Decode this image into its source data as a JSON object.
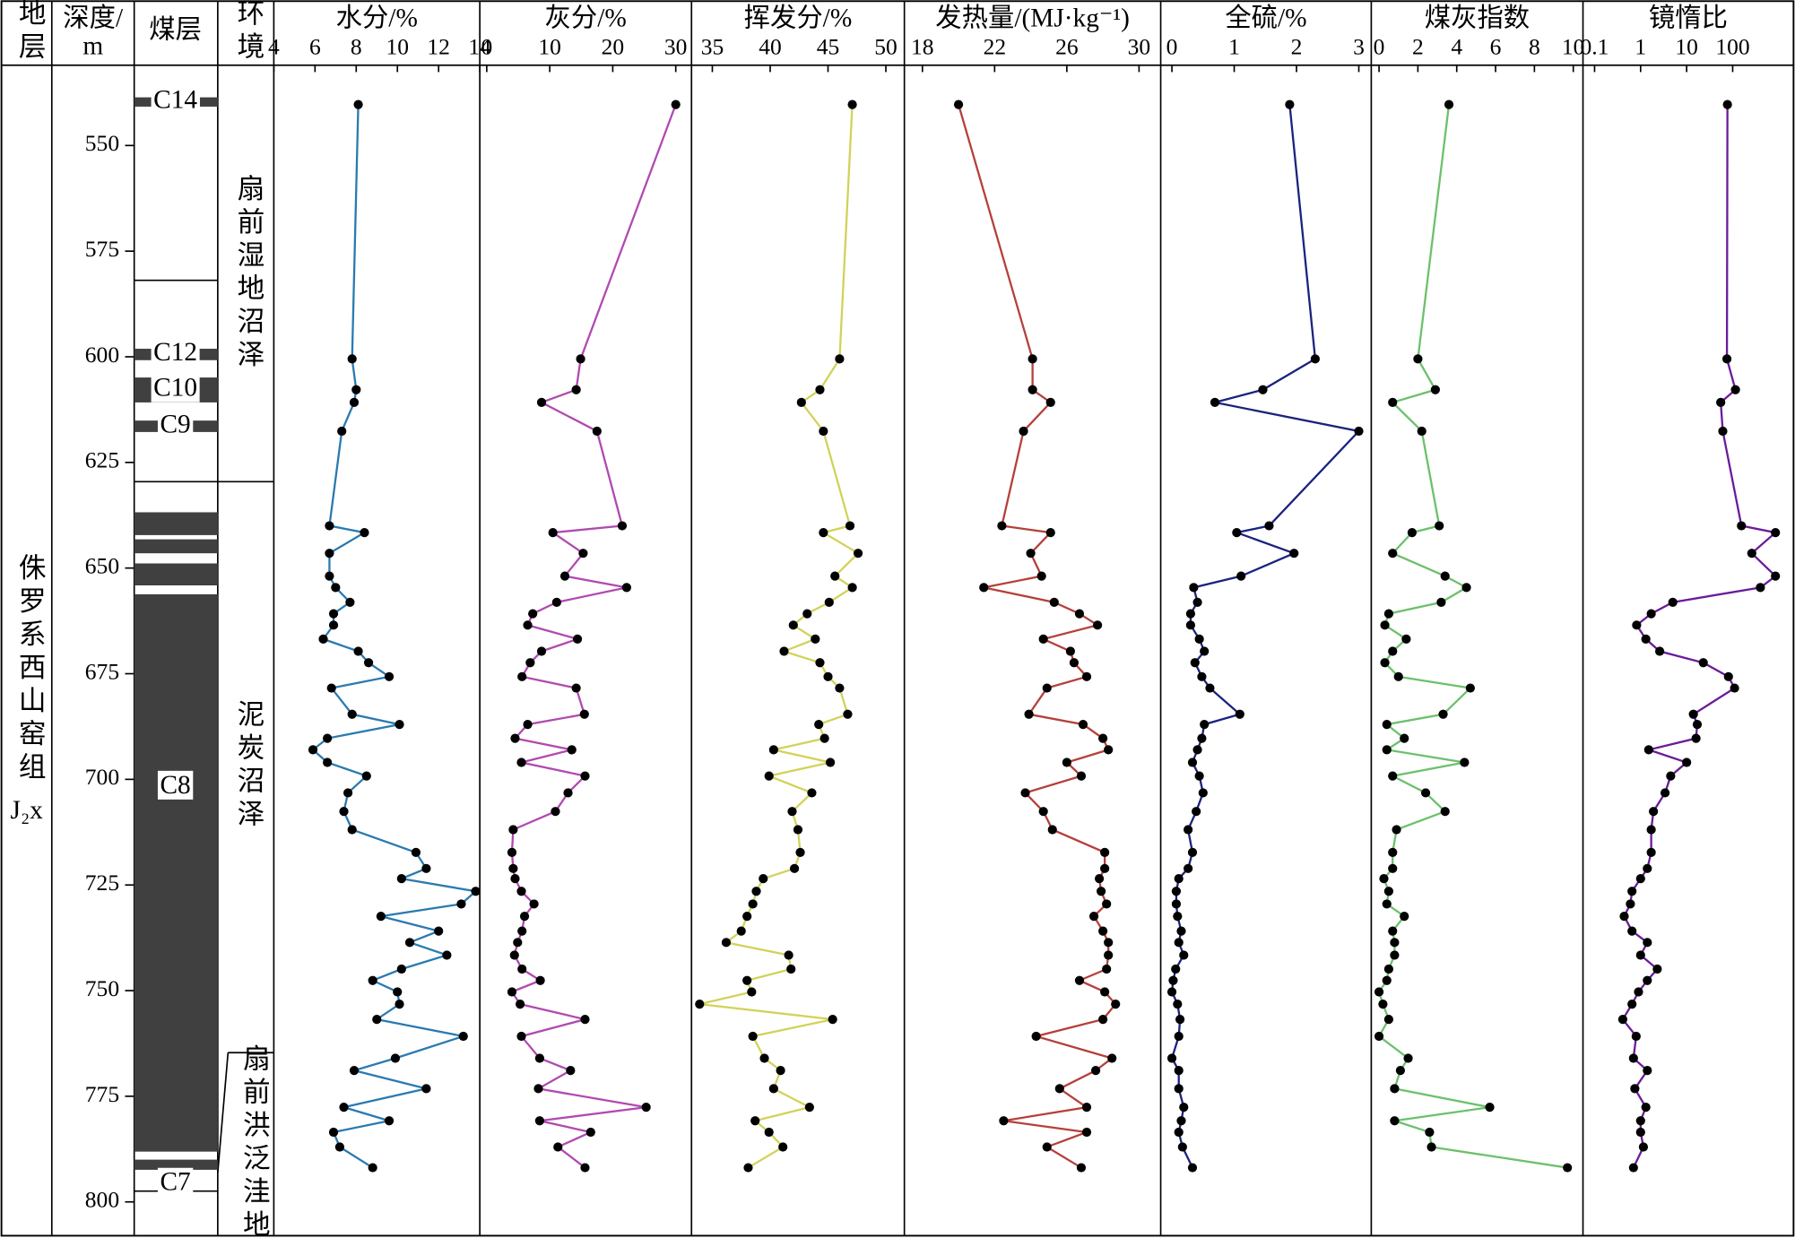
{
  "chart_data": {
    "type": "well-log",
    "headers": {
      "strata": "地层",
      "depth": [
        "深度/",
        "m"
      ],
      "seam": "煤层",
      "environment": "环境"
    },
    "strata": "侏罗系西山窑组",
    "strata_code": "J₂x",
    "ylim": [
      531,
      808
    ],
    "yticks": [
      550,
      575,
      600,
      625,
      650,
      675,
      700,
      725,
      750,
      775,
      800
    ],
    "depth": [
      540.3,
      600.5,
      607.8,
      610.8,
      617.6,
      640,
      641.6,
      646.5,
      651.9,
      654.6,
      658.1,
      660.8,
      663.5,
      666.8,
      669.7,
      672.4,
      675.7,
      678.4,
      684.6,
      687,
      690.3,
      693,
      696,
      699.2,
      703.2,
      707.6,
      711.9,
      717.3,
      721.1,
      723.5,
      726.5,
      729.5,
      732.4,
      735.9,
      738.6,
      741.6,
      744.9,
      747.6,
      750.3,
      753.2,
      756.8,
      760.8,
      766,
      768.9,
      773.2,
      777.6,
      780.8,
      783.5,
      787,
      791.9
    ],
    "seams": [
      {
        "label": "C14",
        "top": 538.6,
        "bottom": 540.8
      },
      {
        "label": "C12",
        "top": 598.1,
        "bottom": 600.8
      },
      {
        "label": "C10",
        "top": 604.9,
        "bottom": 610.8
      },
      {
        "label": "C9",
        "top": 615.1,
        "bottom": 617.8
      },
      {
        "label": null,
        "top": 636.8,
        "bottom": 642.2
      },
      {
        "label": null,
        "top": 643.2,
        "bottom": 646.5
      },
      {
        "label": null,
        "top": 648.9,
        "bottom": 654.1
      },
      {
        "label": "C8",
        "top": 656.2,
        "bottom": 788.1
      },
      {
        "label": "C7",
        "top": 790,
        "bottom": 792.4
      }
    ],
    "environments": [
      {
        "label": "扇前湿地沼泽",
        "top": 531,
        "bottom": 629.5
      },
      {
        "label": "泥炭沼泽",
        "top": 629.5,
        "bottom": 764.3
      },
      {
        "label": "扇前洪泛洼地",
        "top": 764.3,
        "bottom": 808
      }
    ],
    "panels": [
      {
        "title": "水分/%",
        "color": "#2a7ab0",
        "xlim": [
          4,
          14
        ],
        "xticks": [
          4,
          6,
          8,
          10,
          12,
          14
        ],
        "values": [
          8.1,
          7.8,
          8.0,
          7.9,
          7.3,
          6.7,
          8.4,
          6.7,
          6.7,
          7.0,
          7.7,
          6.9,
          6.9,
          6.4,
          8.1,
          8.6,
          9.6,
          6.8,
          7.8,
          10.1,
          6.6,
          5.9,
          6.6,
          8.5,
          7.6,
          7.4,
          7.8,
          10.9,
          11.4,
          10.2,
          13.8,
          13.1,
          9.2,
          12.0,
          10.6,
          12.4,
          10.2,
          8.8,
          10.0,
          10.1,
          9.0,
          13.2,
          9.9,
          7.9,
          11.4,
          7.4,
          9.6,
          6.9,
          7.2,
          8.8
        ]
      },
      {
        "title": "灰分/%",
        "color": "#b04ab0",
        "xlim": [
          -1.1,
          32.5
        ],
        "xticks": [
          0,
          10,
          20,
          30
        ],
        "values": [
          30,
          14.9,
          14.2,
          8.7,
          17.5,
          21.5,
          10.5,
          15.3,
          12.4,
          22.2,
          11.1,
          7.3,
          6.5,
          14.4,
          8.7,
          6.9,
          5.6,
          14.2,
          15.5,
          6.5,
          4.5,
          13.5,
          5.5,
          15.6,
          12.9,
          10.9,
          4.2,
          4.0,
          4.2,
          4.5,
          5.5,
          7.5,
          6.0,
          5.6,
          4.9,
          4.4,
          5.6,
          8.5,
          4.0,
          5.3,
          15.6,
          5.5,
          8.4,
          13.3,
          8.2,
          25.3,
          8.4,
          16.5,
          11.3,
          15.6
        ]
      },
      {
        "title": "挥发分/%",
        "color": "#d2d25a",
        "xlim": [
          33.2,
          51.6
        ],
        "xticks": [
          35,
          40,
          45,
          50
        ],
        "values": [
          47.1,
          46.0,
          44.3,
          42.7,
          44.6,
          46.9,
          44.6,
          47.6,
          45.6,
          47.1,
          45.1,
          43.2,
          42.0,
          43.9,
          41.2,
          44.3,
          45.0,
          46.0,
          46.7,
          44.2,
          44.7,
          40.3,
          45.2,
          39.9,
          43.6,
          41.9,
          42.4,
          42.6,
          42.1,
          39.4,
          38.8,
          38.5,
          38.0,
          37.5,
          36.2,
          41.6,
          41.8,
          38.0,
          38.4,
          33.9,
          45.4,
          38.5,
          39.5,
          40.9,
          40.3,
          43.4,
          38.7,
          39.9,
          41.1,
          38.1
        ]
      },
      {
        "title": "发热量/(MJ·kg⁻¹)",
        "color": "#b5403a",
        "xlim": [
          17,
          31.2
        ],
        "xticks": [
          18,
          22,
          26,
          30
        ],
        "values": [
          20.0,
          24.1,
          24.1,
          25.1,
          23.6,
          22.4,
          25.1,
          24.0,
          24.6,
          21.4,
          25.3,
          26.7,
          27.7,
          24.7,
          26.2,
          26.4,
          27.1,
          24.9,
          23.9,
          26.9,
          28.0,
          28.3,
          26.0,
          26.8,
          23.7,
          24.7,
          25.2,
          28.1,
          28.1,
          27.8,
          27.9,
          28.2,
          27.5,
          28.0,
          28.3,
          28.3,
          28.2,
          26.7,
          28.1,
          28.7,
          28.0,
          24.3,
          28.5,
          27.6,
          25.6,
          27.1,
          22.5,
          27.1,
          24.9,
          26.8
        ]
      },
      {
        "title": "全硫/%",
        "color": "#1a237e",
        "xlim": [
          -0.18,
          3.2
        ],
        "xticks": [
          0,
          1,
          2,
          3
        ],
        "values": [
          1.89,
          2.3,
          1.46,
          0.69,
          3.0,
          1.56,
          1.04,
          1.96,
          1.11,
          0.35,
          0.41,
          0.3,
          0.3,
          0.44,
          0.52,
          0.37,
          0.48,
          0.61,
          1.09,
          0.52,
          0.48,
          0.41,
          0.33,
          0.44,
          0.5,
          0.39,
          0.26,
          0.33,
          0.26,
          0.11,
          0.07,
          0.07,
          0.09,
          0.15,
          0.11,
          0.19,
          0.06,
          0.02,
          0,
          0.09,
          0.13,
          0.11,
          0,
          0.11,
          0.11,
          0.19,
          0.15,
          0.11,
          0.17,
          0.33
        ]
      },
      {
        "title": "煤灰指数",
        "color": "#6cc06c",
        "xlim": [
          -0.4,
          10.5
        ],
        "xticks": [
          0,
          2,
          4,
          6,
          8,
          10
        ],
        "values": [
          3.6,
          2.0,
          2.9,
          0.7,
          2.2,
          3.1,
          1.7,
          0.7,
          3.4,
          4.5,
          3.2,
          0.5,
          0.3,
          1.4,
          0.7,
          0.3,
          1.0,
          4.7,
          3.3,
          0.4,
          1.3,
          0.4,
          4.4,
          0.7,
          2.4,
          3.4,
          0.9,
          0.7,
          0.7,
          0.25,
          0.5,
          0.4,
          1.3,
          0.7,
          0.8,
          0.8,
          0.5,
          0.4,
          0,
          0.2,
          0.5,
          0,
          1.5,
          1.1,
          0.8,
          5.7,
          0.8,
          2.6,
          2.7,
          9.7
        ]
      },
      {
        "title": "镜惰比",
        "color": "#6a1b9a",
        "log": true,
        "xlim": [
          0.056,
          2100
        ],
        "xticks": [
          0.1,
          1,
          10,
          100
        ],
        "values": [
          77,
          75,
          115,
          55,
          61,
          155,
          850,
          260,
          850,
          400,
          5,
          1.7,
          0.82,
          1.3,
          2.6,
          23,
          81,
          110,
          14,
          17,
          16,
          1.5,
          10,
          4.5,
          3.4,
          1.9,
          1.7,
          1.7,
          1.4,
          1.0,
          0.65,
          0.6,
          0.44,
          0.65,
          1.4,
          1.0,
          2.3,
          1.4,
          0.9,
          0.65,
          0.41,
          0.8,
          0.7,
          1.4,
          0.75,
          1.3,
          1.0,
          1.0,
          1.15,
          0.7
        ]
      }
    ]
  }
}
